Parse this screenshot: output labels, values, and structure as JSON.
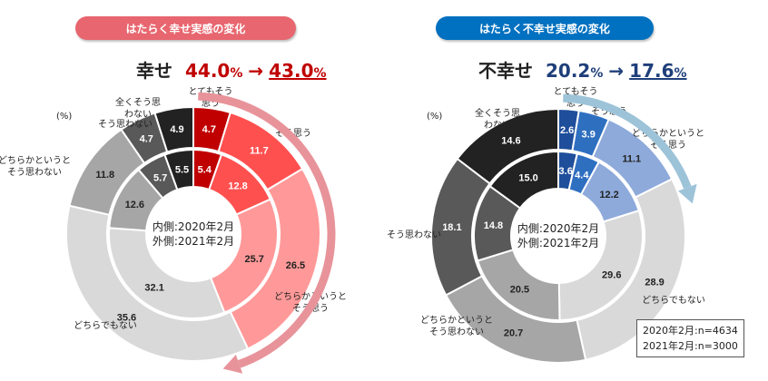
{
  "chart_data": [
    {
      "type": "donut",
      "title": "はたらく幸せ実感の変化",
      "unit": "(%)",
      "headline": {
        "label": "幸せ",
        "before": "44.0",
        "after": "43.0",
        "unit": "%",
        "arrow": "→"
      },
      "center_text": [
        "内側:2020年2月",
        "外側:2021年2月"
      ],
      "categories": [
        "とてもそう思う",
        "そう思う",
        "どちらかというとそう思う",
        "どちらでもない",
        "どちらかというとそう思わない",
        "そう思わない",
        "全くそう思わない"
      ],
      "category_label_lines": [
        [
          "とてもそう",
          "思う"
        ],
        [
          "そう思う"
        ],
        [
          "どちらかというと",
          "そう思う"
        ],
        [
          "どちらでもない"
        ],
        [
          "どちらかというと",
          "そう思わない"
        ],
        [
          "そう思わない"
        ],
        [
          "全くそう思",
          "わない"
        ]
      ],
      "series": [
        {
          "name": "2020年2月",
          "ring": "inner",
          "values": [
            5.4,
            12.8,
            25.7,
            32.1,
            12.6,
            5.7,
            5.5
          ]
        },
        {
          "name": "2021年2月",
          "ring": "outer",
          "values": [
            4.7,
            11.7,
            26.5,
            35.6,
            11.8,
            4.7,
            4.9
          ]
        }
      ],
      "colors": [
        "#c00000",
        "#ff5050",
        "#ff9999",
        "#d9d9d9",
        "#a6a6a6",
        "#595959",
        "#222222"
      ],
      "highlight_color": "#c00000",
      "banner_color": "#e8666f",
      "arrow_color": "#e8939a"
    },
    {
      "type": "donut",
      "title": "はたらく不幸せ実感の変化",
      "unit": "(%)",
      "headline": {
        "label": "不幸せ",
        "before": "20.2",
        "after": "17.6",
        "unit": "%",
        "arrow": "→"
      },
      "center_text": [
        "内側:2020年2月",
        "外側:2021年2月"
      ],
      "categories": [
        "とてもそう思う",
        "そう思う",
        "どちらかというとそう思う",
        "どちらでもない",
        "どちらかというとそう思わない",
        "そう思わない",
        "全くそう思わない"
      ],
      "category_label_lines": [
        [
          "とてもそう",
          "思う"
        ],
        [
          "そう思う"
        ],
        [
          "どちらかというと",
          "そう思う"
        ],
        [
          "どちらでもない"
        ],
        [
          "どちらかというと",
          "そう思わない"
        ],
        [
          "そう思わない"
        ],
        [
          "全くそう思",
          "わない"
        ]
      ],
      "series": [
        {
          "name": "2020年2月",
          "ring": "inner",
          "values": [
            3.6,
            4.4,
            12.2,
            29.6,
            20.5,
            14.8,
            15.0
          ]
        },
        {
          "name": "2021年2月",
          "ring": "outer",
          "values": [
            2.6,
            3.9,
            11.1,
            28.9,
            20.7,
            18.1,
            14.6
          ]
        }
      ],
      "colors": [
        "#1f4e9a",
        "#2f6fc0",
        "#8eaadb",
        "#d9d9d9",
        "#a6a6a6",
        "#595959",
        "#222222"
      ],
      "highlight_color": "#1f3f7a",
      "banner_color": "#0070c0",
      "arrow_color": "#9dc3d8"
    }
  ],
  "note": [
    "2020年2月:n=4634",
    "2021年2月:n=3000"
  ]
}
